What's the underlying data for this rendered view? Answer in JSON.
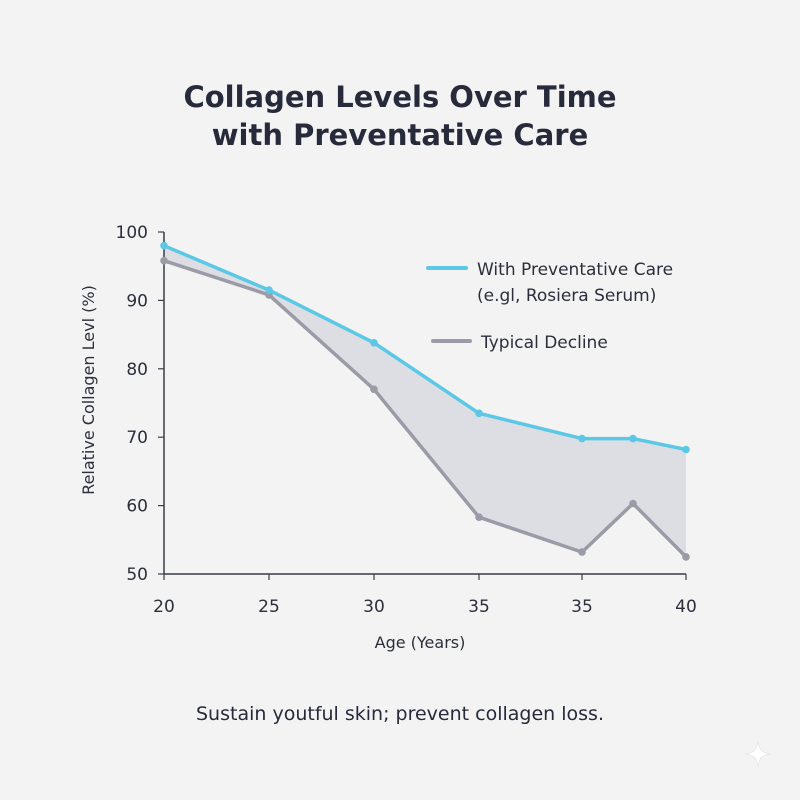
{
  "chart_data": {
    "type": "line",
    "title_lines": [
      "Collagen Levels Over Time",
      "with Preventative Care"
    ],
    "xlabel": "Age (Years)",
    "ylabel": "Relative Collagen Levl (%)",
    "categories": [
      "20",
      "25",
      "30",
      "35",
      "35",
      "",
      "40"
    ],
    "x_tick_labels": [
      "20",
      "25",
      "30",
      "35",
      "35",
      "40"
    ],
    "y_ticks": [
      100,
      90,
      80,
      70,
      60,
      50
    ],
    "ylim": [
      50,
      100
    ],
    "series": [
      {
        "name_lines": [
          "With Preventative Care",
          "(e.gl, Rosiera Serum)"
        ],
        "color": "#5bc8e6",
        "values": [
          98,
          91.5,
          83.8,
          73.5,
          69.8,
          69.8,
          68.2
        ]
      },
      {
        "name_lines": [
          "Typical Decline"
        ],
        "color": "#9a9ba6",
        "values": [
          95.8,
          90.8,
          77,
          58.3,
          53.2,
          60.3,
          52.5
        ]
      }
    ],
    "fill_between": true,
    "fill_color": "#dddee3",
    "legend_position": "right-top",
    "grid": false
  },
  "caption": "Sustain youtful skin; prevent collagen loss.",
  "icons": {
    "corner": "sparkle-icon"
  }
}
